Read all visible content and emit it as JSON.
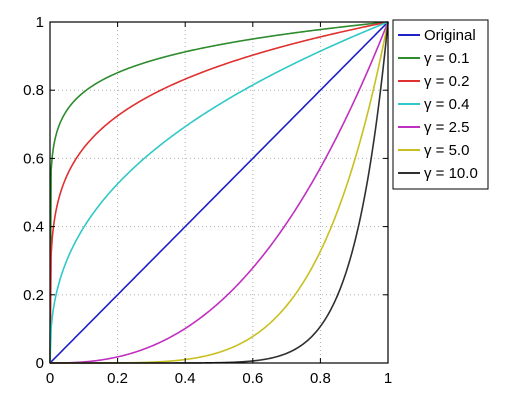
{
  "chart_data": {
    "type": "line",
    "title": "",
    "xlabel": "",
    "ylabel": "",
    "xlim": [
      0,
      1
    ],
    "ylim": [
      0,
      1
    ],
    "grid": true,
    "grid_style": "dotted",
    "legend_position": "outside-top-right",
    "x_ticks": [
      "0",
      "0.2",
      "0.4",
      "0.6",
      "0.8",
      "1"
    ],
    "y_ticks": [
      "0",
      "0.2",
      "0.4",
      "0.6",
      "0.8",
      "1"
    ],
    "x": [
      0,
      0.02,
      0.05,
      0.1,
      0.15,
      0.2,
      0.25,
      0.3,
      0.35,
      0.4,
      0.45,
      0.5,
      0.55,
      0.6,
      0.65,
      0.7,
      0.75,
      0.8,
      0.85,
      0.9,
      0.95,
      1
    ],
    "series": [
      {
        "name": "Original",
        "gamma": 1.0,
        "color": "#2020c8",
        "values": [
          0,
          0.02,
          0.05,
          0.1,
          0.15,
          0.2,
          0.25,
          0.3,
          0.35,
          0.4,
          0.45,
          0.5,
          0.55,
          0.6,
          0.65,
          0.7,
          0.75,
          0.8,
          0.85,
          0.9,
          0.95,
          1
        ]
      },
      {
        "name": "γ = 0.1",
        "gamma": 0.1,
        "color": "#2e8b2e",
        "values": [
          0,
          0.68,
          0.74,
          0.79,
          0.83,
          0.85,
          0.87,
          0.89,
          0.9,
          0.91,
          0.92,
          0.93,
          0.94,
          0.95,
          0.96,
          0.965,
          0.97,
          0.98,
          0.985,
          0.99,
          0.995,
          1
        ]
      },
      {
        "name": "γ = 0.2",
        "gamma": 0.2,
        "color": "#e03030",
        "values": [
          0,
          0.46,
          0.55,
          0.63,
          0.68,
          0.72,
          0.76,
          0.79,
          0.81,
          0.83,
          0.85,
          0.87,
          0.89,
          0.9,
          0.92,
          0.93,
          0.94,
          0.96,
          0.97,
          0.98,
          0.99,
          1
        ]
      },
      {
        "name": "γ = 0.4",
        "gamma": 0.4,
        "color": "#30c8c8",
        "values": [
          0,
          0.21,
          0.3,
          0.4,
          0.47,
          0.53,
          0.57,
          0.62,
          0.66,
          0.69,
          0.73,
          0.76,
          0.79,
          0.82,
          0.84,
          0.87,
          0.89,
          0.91,
          0.94,
          0.96,
          0.98,
          1
        ]
      },
      {
        "name": "γ = 2.5",
        "gamma": 2.5,
        "color": "#c030c0",
        "values": [
          0,
          0.0001,
          0.0006,
          0.003,
          0.009,
          0.018,
          0.031,
          0.049,
          0.072,
          0.1,
          0.136,
          0.177,
          0.224,
          0.279,
          0.341,
          0.41,
          0.487,
          0.572,
          0.666,
          0.768,
          0.88,
          1
        ]
      },
      {
        "name": "γ = 5.0",
        "gamma": 5.0,
        "color": "#c8c020",
        "values": [
          0,
          0,
          0,
          0,
          0.0001,
          0.0003,
          0.001,
          0.0024,
          0.0053,
          0.0102,
          0.0185,
          0.031,
          0.05,
          0.078,
          0.116,
          0.168,
          0.237,
          0.328,
          0.444,
          0.59,
          0.774,
          1
        ]
      },
      {
        "name": "γ = 10.0",
        "gamma": 10.0,
        "color": "#303030",
        "values": [
          0,
          0,
          0,
          0,
          0,
          0,
          0,
          0,
          0,
          0.0001,
          0.0003,
          0.001,
          0.0025,
          0.006,
          0.0135,
          0.028,
          0.056,
          0.107,
          0.197,
          0.349,
          0.599,
          1
        ]
      }
    ]
  }
}
